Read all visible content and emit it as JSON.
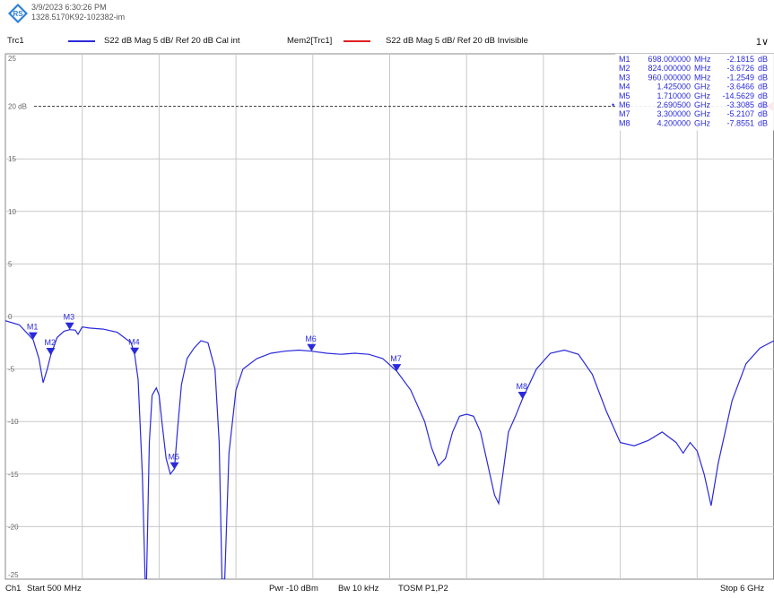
{
  "header": {
    "timestamp": "3/9/2023 6:30:26 PM",
    "device_id": "1328.5170K92-102382-im"
  },
  "tracebar": {
    "trace1": "Trc1",
    "trace1_desc": "S22  dB Mag  5 dB/ Ref 20 dB  Cal int",
    "trace2": "Mem2[Trc1]",
    "trace2_desc": "S22  dB Mag  5 dB/ Ref 20 dB  Invisible",
    "menu_label": "1∨",
    "trace1_color": "#2a2adc",
    "trace2_color": "#e02020"
  },
  "bottom": {
    "channel": "Ch1",
    "start": "Start  500 MHz",
    "pwr": "Pwr  -10 dBm",
    "bw": "Bw  10 kHz",
    "cal": "TOSM P1,P2",
    "stop": "Stop  6 GHz"
  },
  "markers": [
    {
      "name": "M1",
      "freq": "698.000000",
      "unit": "MHz",
      "val": "-2.1815",
      "db": "dB",
      "x": 0.698,
      "y": -2.1815,
      "active": false
    },
    {
      "name": "M2",
      "freq": "824.000000",
      "unit": "MHz",
      "val": "-3.6726",
      "db": "dB",
      "x": 0.824,
      "y": -3.6726,
      "active": false
    },
    {
      "name": "M3",
      "freq": "960.000000",
      "unit": "MHz",
      "val": "-1.2549",
      "db": "dB",
      "x": 0.96,
      "y": -1.2549,
      "active": false
    },
    {
      "name": "M4",
      "freq": "1.425000",
      "unit": "GHz",
      "val": "-3.6466",
      "db": "dB",
      "x": 1.425,
      "y": -3.6466,
      "active": false
    },
    {
      "name": "M5",
      "freq": "1.710000",
      "unit": "GHz",
      "val": "-14.5629",
      "db": "dB",
      "x": 1.71,
      "y": -14.5629,
      "active": false
    },
    {
      "name": "M6",
      "freq": "2.690500",
      "unit": "GHz",
      "val": "-3.3085",
      "db": "dB",
      "x": 2.6905,
      "y": -3.3085,
      "active": true
    },
    {
      "name": "M7",
      "freq": "3.300000",
      "unit": "GHz",
      "val": "-5.2107",
      "db": "dB",
      "x": 3.3,
      "y": -5.2107,
      "active": false
    },
    {
      "name": "M8",
      "freq": "4.200000",
      "unit": "GHz",
      "val": "-7.8551",
      "db": "dB",
      "x": 4.2,
      "y": -7.8551,
      "active": false
    }
  ],
  "chart_data": {
    "type": "line",
    "title": "",
    "xlabel": "",
    "ylabel": "",
    "xlim": [
      0.5,
      6.0
    ],
    "ylim": [
      -25,
      25
    ],
    "x_unit": "GHz",
    "y_unit": "dB",
    "yticks": [
      25,
      20,
      15,
      10,
      5,
      0,
      -5,
      -10,
      -15,
      -20,
      -25
    ],
    "ytick_labels": [
      "25",
      "20 dB",
      "15",
      "10",
      "5",
      "0",
      "-5",
      "-10",
      "-15",
      "-20",
      "-25"
    ],
    "reference_level": 20,
    "grid": true,
    "series": [
      {
        "name": "Trc1",
        "color": "#2a2adc",
        "x": [
          0.5,
          0.6,
          0.698,
          0.74,
          0.77,
          0.8,
          0.824,
          0.87,
          0.92,
          0.96,
          1.0,
          1.02,
          1.05,
          1.1,
          1.2,
          1.3,
          1.4,
          1.425,
          1.45,
          1.48,
          1.5,
          1.51,
          1.53,
          1.55,
          1.58,
          1.6,
          1.62,
          1.65,
          1.68,
          1.71,
          1.73,
          1.76,
          1.8,
          1.85,
          1.9,
          1.95,
          2.0,
          2.03,
          2.05,
          2.07,
          2.1,
          2.15,
          2.2,
          2.3,
          2.4,
          2.5,
          2.6,
          2.69,
          2.8,
          2.9,
          3.0,
          3.1,
          3.2,
          3.3,
          3.4,
          3.5,
          3.55,
          3.6,
          3.65,
          3.7,
          3.75,
          3.8,
          3.85,
          3.9,
          3.95,
          4.0,
          4.03,
          4.06,
          4.1,
          4.15,
          4.2,
          4.3,
          4.4,
          4.5,
          4.6,
          4.7,
          4.8,
          4.9,
          5.0,
          5.1,
          5.2,
          5.3,
          5.35,
          5.4,
          5.45,
          5.5,
          5.55,
          5.6,
          5.7,
          5.8,
          5.9,
          6.0
        ],
        "y": [
          -0.4,
          -0.8,
          -2.2,
          -4.0,
          -6.3,
          -5.0,
          -3.7,
          -2.0,
          -1.4,
          -1.25,
          -1.3,
          -1.7,
          -1.0,
          -1.1,
          -1.2,
          -1.5,
          -2.5,
          -3.6,
          -6.0,
          -15.0,
          -25.0,
          -25.0,
          -12.0,
          -7.5,
          -6.8,
          -7.5,
          -10.0,
          -13.5,
          -15.0,
          -14.5,
          -11.0,
          -6.5,
          -4.0,
          -3.0,
          -2.3,
          -2.5,
          -5.0,
          -12.0,
          -25.0,
          -25.0,
          -13.0,
          -7.0,
          -5.0,
          -4.0,
          -3.5,
          -3.3,
          -3.2,
          -3.3,
          -3.5,
          -3.6,
          -3.5,
          -3.6,
          -4.0,
          -5.2,
          -7.0,
          -10.0,
          -12.5,
          -14.2,
          -13.5,
          -11.0,
          -9.5,
          -9.3,
          -9.5,
          -11.0,
          -14.0,
          -17.0,
          -17.8,
          -15.0,
          -11.0,
          -9.5,
          -7.85,
          -5.0,
          -3.5,
          -3.2,
          -3.6,
          -5.5,
          -9.0,
          -12.0,
          -12.3,
          -11.8,
          -11.0,
          -12.0,
          -13.0,
          -12.0,
          -12.8,
          -15.0,
          -18.0,
          -14.0,
          -8.0,
          -4.5,
          -3.0,
          -2.3
        ]
      }
    ]
  }
}
